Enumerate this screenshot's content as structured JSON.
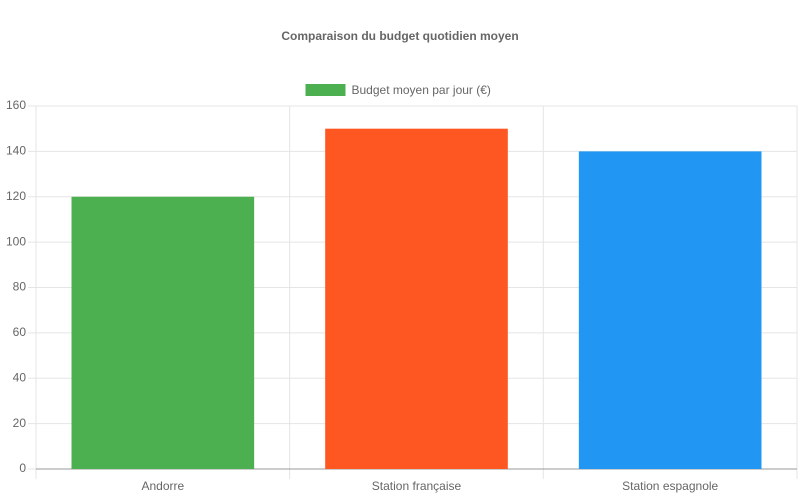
{
  "chart_data": {
    "type": "bar",
    "title": "Comparaison du budget quotidien moyen",
    "categories": [
      "Andorre",
      "Station française",
      "Station espagnole"
    ],
    "series": [
      {
        "name": "Budget moyen par jour (€)",
        "color": "#4caf50",
        "bar_colors": [
          "#4caf50",
          "#ff5722",
          "#2196f3"
        ],
        "values": [
          120,
          150,
          140
        ]
      }
    ],
    "ylim": [
      0,
      160
    ],
    "yticks": [
      0,
      20,
      40,
      60,
      80,
      100,
      120,
      140,
      160
    ],
    "grid": true,
    "legend": "top"
  }
}
